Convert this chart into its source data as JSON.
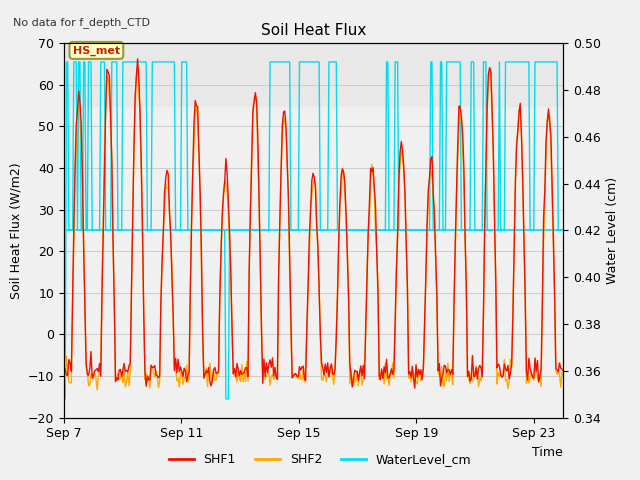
{
  "title": "Soil Heat Flux",
  "subtitle": "No data for f_depth_CTD",
  "ylabel_left": "Soil Heat Flux (W/m2)",
  "ylabel_right": "Water Level (cm)",
  "xlabel": "Time",
  "station_label": "HS_met",
  "ylim_left": [
    -20,
    70
  ],
  "ylim_right": [
    0.34,
    0.5
  ],
  "yticks_left": [
    -20,
    -10,
    0,
    10,
    20,
    30,
    40,
    50,
    60,
    70
  ],
  "yticks_right": [
    0.34,
    0.36,
    0.38,
    0.4,
    0.42,
    0.44,
    0.46,
    0.48,
    0.5
  ],
  "xtick_labels": [
    "Sep 7",
    "Sep 11",
    "Sep 15",
    "Sep 19",
    "Sep 23"
  ],
  "xtick_pos": [
    0,
    4,
    8,
    12,
    16
  ],
  "shf1_color": "#ee1100",
  "shf2_color": "#ffaa00",
  "water_color": "#00ddee",
  "hline_water_val": 0.42,
  "hspan_low": 55,
  "hspan_high": 70,
  "hspan_color": "#e8e8e8",
  "background_color": "#f0f0f0",
  "plot_bg_color": "#f0f0f0",
  "grid_color": "#cccccc",
  "n_days": 17,
  "n_hours": 408,
  "day_peaks_shf1": [
    58,
    65,
    65,
    38,
    56,
    40,
    59,
    55,
    40,
    40,
    41,
    47,
    41,
    55,
    65,
    55,
    54
  ],
  "day_peaks_shf2": [
    56,
    63,
    63,
    36,
    54,
    38,
    57,
    53,
    38,
    38,
    39,
    45,
    39,
    53,
    63,
    53,
    52
  ],
  "night_val": -9.0,
  "noise_shf": 1.5,
  "water_base": 0.42,
  "water_spike": 0.492,
  "water_dip": 0.348,
  "legend_label_shf1": "SHF1",
  "legend_label_shf2": "SHF2",
  "legend_label_water": "WaterLevel_cm"
}
